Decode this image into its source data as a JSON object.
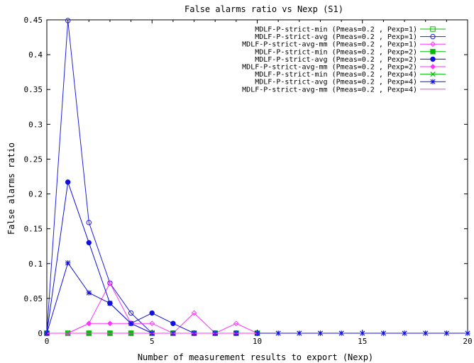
{
  "chart_data": {
    "type": "line",
    "title": "False alarms ratio vs Nexp (S1)",
    "xlabel": "Number of measurement results to export (Nexp)",
    "ylabel": "False alarms ratio",
    "xlim": [
      0,
      20
    ],
    "ylim": [
      0,
      0.45
    ],
    "x_ticks": [
      0,
      5,
      10,
      15,
      20
    ],
    "x_tick_labels": [
      "0",
      "5",
      "10",
      "15",
      "20"
    ],
    "y_ticks": [
      0,
      0.05,
      0.1,
      0.15,
      0.2,
      0.25,
      0.3,
      0.35,
      0.4,
      0.45
    ],
    "y_tick_labels": [
      "0",
      "0.05",
      "0.1",
      "0.15",
      "0.2",
      "0.25",
      "0.3",
      "0.35",
      "0.4",
      "0.45"
    ],
    "grid": false,
    "legend_position": "top-right",
    "series": [
      {
        "name": "MDLF-P-strict-min (Pmeas=0.2 , Pexp=1)",
        "color": "#00bb00",
        "marker": "square-open",
        "x": [
          0,
          1,
          2,
          3,
          4,
          5,
          6,
          7,
          8,
          9,
          10
        ],
        "y": [
          0,
          0,
          0,
          0,
          0,
          0,
          0,
          0,
          0,
          0,
          0
        ]
      },
      {
        "name": "MDLF-P-strict-avg (Pmeas=0.2 , Pexp=1)",
        "color": "#2020dd",
        "marker": "circle-open",
        "x": [
          0,
          1,
          2,
          3,
          4,
          5,
          6,
          7,
          8,
          9,
          10
        ],
        "y": [
          0,
          0.449,
          0.159,
          0.072,
          0.029,
          0,
          0,
          0,
          0,
          0,
          0
        ]
      },
      {
        "name": "MDLF-P-strict-avg-mm (Pmeas=0.2 , Pexp=1)",
        "color": "#ff33ff",
        "marker": "diamond-open",
        "x": [
          0,
          1,
          2,
          3,
          4,
          5,
          6,
          7,
          8,
          9,
          10
        ],
        "y": [
          0,
          0,
          0.014,
          0.072,
          0.014,
          0.014,
          0,
          0.029,
          0,
          0.014,
          0
        ]
      },
      {
        "name": "MDLF-P-strict-min (Pmeas=0.2 , Pexp=2)",
        "color": "#00bb00",
        "marker": "square-filled",
        "x": [
          0,
          1,
          2,
          3,
          4,
          5,
          6,
          7,
          8,
          9,
          10
        ],
        "y": [
          0,
          0,
          0,
          0,
          0,
          0,
          0,
          0,
          0,
          0,
          0
        ]
      },
      {
        "name": "MDLF-P-strict-avg (Pmeas=0.2 , Pexp=2)",
        "color": "#1010dd",
        "marker": "circle-filled",
        "x": [
          0,
          1,
          2,
          3,
          4,
          5,
          6,
          7,
          8,
          9,
          10
        ],
        "y": [
          0,
          0.217,
          0.13,
          0.043,
          0.014,
          0.029,
          0.014,
          0,
          0,
          0,
          0
        ]
      },
      {
        "name": "MDLF-P-strict-avg-mm (Pmeas=0.2 , Pexp=2)",
        "color": "#ff33ff",
        "marker": "diamond-filled",
        "x": [
          0,
          1,
          2,
          3,
          4,
          5,
          6,
          7,
          8,
          9,
          10
        ],
        "y": [
          0,
          0,
          0.014,
          0.014,
          0.014,
          0,
          0,
          0,
          0,
          0,
          0
        ]
      },
      {
        "name": "MDLF-P-strict-min (Pmeas=0.2 , Pexp=4)",
        "color": "#00bb00",
        "marker": "x",
        "x": [
          0,
          1,
          2,
          3,
          4,
          5,
          6,
          7,
          8,
          9,
          10
        ],
        "y": [
          0,
          0,
          0,
          0,
          0,
          0,
          0,
          0,
          0,
          0,
          0
        ]
      },
      {
        "name": "MDLF-P-strict-avg (Pmeas=0.2 , Pexp=4)",
        "color": "#1010dd",
        "marker": "star",
        "x": [
          0,
          1,
          2,
          3,
          4,
          5,
          6,
          7,
          8,
          9,
          10,
          11,
          12,
          13,
          14,
          15,
          16,
          17,
          18,
          19,
          20
        ],
        "y": [
          0,
          0.101,
          0.058,
          0.043,
          0.014,
          0,
          0,
          0,
          0,
          0,
          0,
          0,
          0,
          0,
          0,
          0,
          0,
          0,
          0,
          0,
          0
        ]
      },
      {
        "name": "MDLF-P-strict-avg-mm (Pmeas=0.2 , Pexp=4)",
        "color": "#ff33ff",
        "marker": "none",
        "x": [
          0,
          1,
          2,
          3,
          4,
          5,
          6,
          7,
          8,
          9,
          10
        ],
        "y": [
          0,
          0,
          0,
          0,
          0,
          0,
          0,
          0,
          0,
          0,
          0
        ]
      }
    ]
  }
}
